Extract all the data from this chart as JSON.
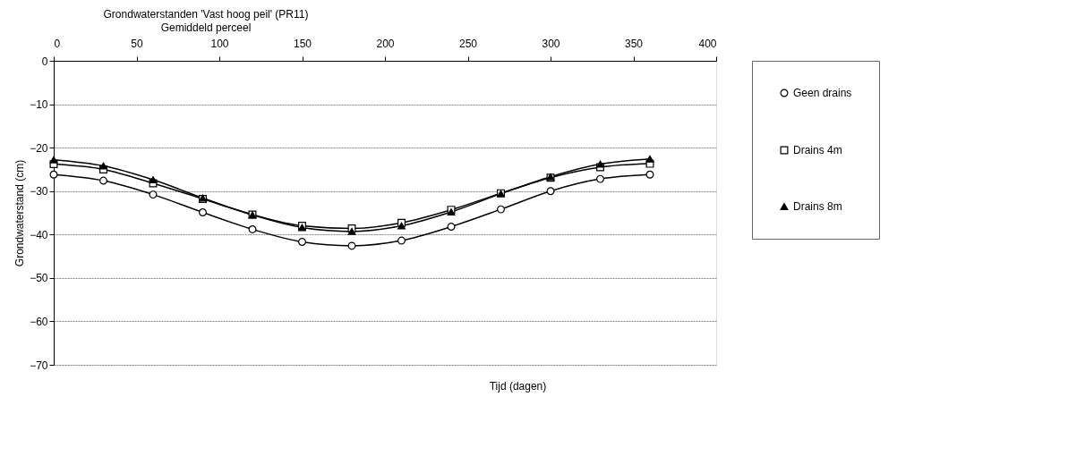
{
  "chart_data": {
    "type": "line",
    "title": "Grondwaterstanden 'Vast hoog peil' (PR11)",
    "subtitle": "Gemiddeld perceel",
    "xlabel": "Tijd (dagen)",
    "ylabel": "Grondwaterstand (cm)",
    "x": [
      0,
      30,
      60,
      90,
      120,
      150,
      180,
      210,
      240,
      270,
      300,
      330,
      360
    ],
    "series": [
      {
        "name": "Geen drains",
        "color": "#000000",
        "marker": "circle",
        "values": [
          -26.2,
          -27.6,
          -30.8,
          -34.9,
          -38.8,
          -41.7,
          -42.6,
          -41.4,
          -38.2,
          -34.2,
          -30.0,
          -27.2,
          -26.2
        ]
      },
      {
        "name": "Drains 4m",
        "color": "#000000",
        "marker": "square",
        "values": [
          -23.8,
          -25.0,
          -28.2,
          -31.8,
          -35.4,
          -38.0,
          -38.6,
          -37.3,
          -34.3,
          -30.5,
          -26.9,
          -24.5,
          -23.7
        ]
      },
      {
        "name": "Drains 8m",
        "color": "#000000",
        "marker": "triangle",
        "values": [
          -22.8,
          -24.2,
          -27.4,
          -31.6,
          -35.5,
          -38.4,
          -39.3,
          -38.0,
          -34.8,
          -30.6,
          -26.7,
          -23.8,
          -22.6
        ]
      }
    ],
    "xlim": [
      0,
      400
    ],
    "xticks": [
      0,
      50,
      100,
      150,
      200,
      250,
      300,
      350,
      400
    ],
    "ylim": [
      -70,
      0
    ],
    "yticks": [
      0,
      -10,
      -20,
      -30,
      -40,
      -50,
      -60,
      -70
    ],
    "grid": "y",
    "legend": "right",
    "line_style": "solid"
  }
}
